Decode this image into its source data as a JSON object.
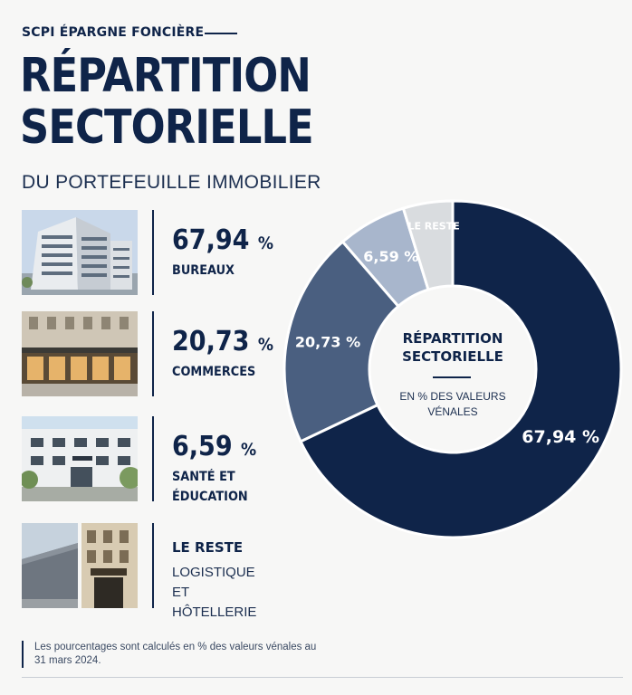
{
  "header": {
    "eyebrow": "SCPI ÉPARGNE FONCIÈRE",
    "title_line1": "RÉPARTITION",
    "title_line2": "SECTORIELLE",
    "subtitle": "DU PORTEFEUILLE IMMOBILIER"
  },
  "sectors": [
    {
      "value": "67,94",
      "unit": "%",
      "label": "BUREAUX"
    },
    {
      "value": "20,73",
      "unit": "%",
      "label_line1": "COMMERCES"
    },
    {
      "value": "6,59",
      "unit": "%",
      "label_line1": "SANTÉ ET",
      "label_line2": "ÉDUCATION"
    },
    {
      "label": "LE RESTE",
      "sub": "LOGISTIQUE\nET HÔTELLERIE"
    }
  ],
  "center": {
    "title_line1": "RÉPARTITION",
    "title_line2": "SECTORIELLE",
    "sub": "EN % DES VALEURS VÉNALES"
  },
  "footer": {
    "note": "Les pourcentages sont calculés en % des valeurs vénales au 31 mars 2024."
  },
  "colors": {
    "navy": "#0f2449",
    "slate": "#4a5f80",
    "light_blue": "#a8b6cc",
    "light_gray": "#d9dcdf"
  },
  "chart_data": {
    "type": "pie",
    "title": "RÉPARTITION SECTORIELLE",
    "subtitle": "EN % DES VALEURS VÉNALES",
    "slices": [
      {
        "label": "BUREAUX",
        "value": 67.94,
        "display": "67,94 %",
        "color": "#0f2449"
      },
      {
        "label": "COMMERCES",
        "value": 20.73,
        "display": "20,73 %",
        "color": "#4a5f80"
      },
      {
        "label": "SANTÉ ET ÉDUCATION",
        "value": 6.59,
        "display": "6,59 %",
        "color": "#a8b6cc"
      },
      {
        "label": "LE RESTE",
        "value": 4.74,
        "display": "LE RESTE",
        "color": "#d9dcdf"
      }
    ]
  }
}
